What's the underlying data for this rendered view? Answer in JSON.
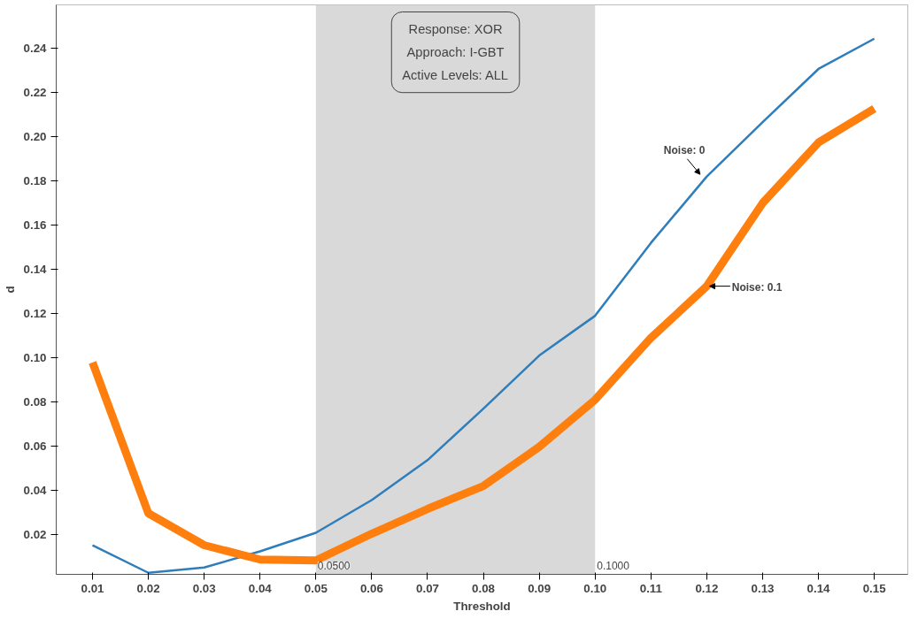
{
  "chart_data": {
    "type": "line",
    "xlabel": "Threshold",
    "ylabel": "d",
    "x": [
      0.01,
      0.02,
      0.03,
      0.04,
      0.05,
      0.06,
      0.07,
      0.08,
      0.09,
      0.1,
      0.11,
      0.12,
      0.13,
      0.14,
      0.15
    ],
    "series": [
      {
        "name": "Noise: 0",
        "color": "#2e7ebc",
        "values": [
          0.0152,
          0.0027,
          0.0051,
          0.0124,
          0.0208,
          0.0356,
          0.0537,
          0.077,
          0.101,
          0.119,
          0.152,
          0.182,
          0.2066,
          0.2307,
          0.2444
        ]
      },
      {
        "name": "Noise: 0.1",
        "color": "#ff7f0e",
        "values": [
          0.0979,
          0.0296,
          0.0152,
          0.0087,
          0.0083,
          0.0204,
          0.0316,
          0.042,
          0.0597,
          0.081,
          0.109,
          0.1324,
          0.17,
          0.1974,
          0.2127
        ]
      }
    ],
    "xlim": [
      0.0035,
      0.156
    ],
    "ylim": [
      0.002,
      0.2597
    ],
    "xticks": [
      0.01,
      0.02,
      0.03,
      0.04,
      0.05,
      0.06,
      0.07,
      0.08,
      0.09,
      {
        "value": 0.1,
        "label": "0.10"
      },
      0.11,
      0.12,
      0.13,
      0.14,
      0.15
    ],
    "yticks": [
      0.02,
      0.04,
      0.06,
      0.08,
      {
        "value": 0.1,
        "label": "0.10"
      },
      0.12,
      0.14,
      0.16,
      0.18,
      {
        "value": 0.2,
        "label": "0.20"
      },
      0.22,
      0.24
    ],
    "bands": [
      {
        "axis": "x",
        "from": 0.05,
        "to": 0.1,
        "color": "#d9d9d9"
      }
    ],
    "annotations": [
      "Response: XOR",
      "Approach: I-GBT",
      "Active Levels: ALL",
      {
        "text": "0.0500",
        "x": 0.05,
        "y": 0.006
      },
      {
        "text": "0.1000",
        "x": 0.1,
        "y": 0.006
      }
    ],
    "grid": false
  }
}
